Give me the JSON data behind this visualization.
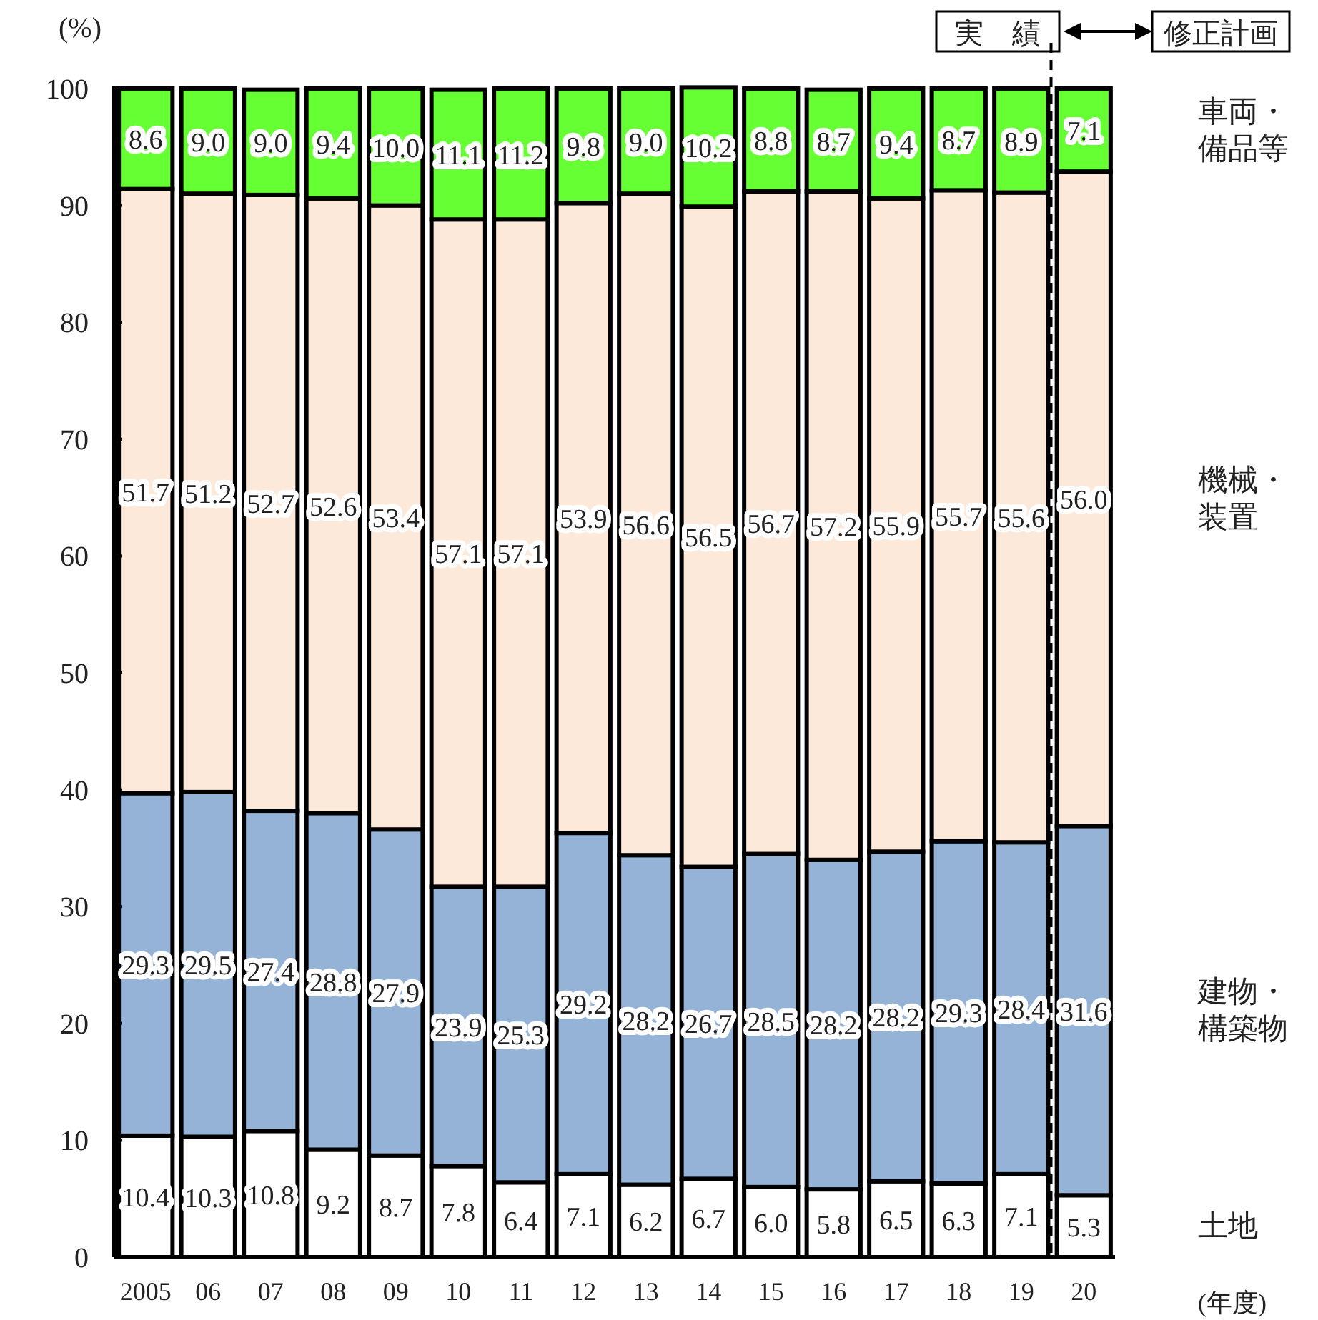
{
  "chart_data": {
    "type": "bar",
    "stacked": true,
    "grid": false,
    "ylabel": "(%)",
    "xlabel": "(年度)",
    "categories": [
      "2005",
      "06",
      "07",
      "08",
      "09",
      "10",
      "11",
      "12",
      "13",
      "14",
      "15",
      "16",
      "17",
      "18",
      "19",
      "20"
    ],
    "ylim": [
      0,
      100
    ],
    "yticks": [
      0,
      10,
      20,
      30,
      40,
      50,
      60,
      70,
      80,
      90,
      100
    ],
    "series": [
      {
        "name": "土地",
        "color": "#ffffff",
        "values": [
          10.4,
          10.3,
          10.8,
          9.2,
          8.7,
          7.8,
          6.4,
          7.1,
          6.2,
          6.7,
          6.0,
          5.8,
          6.5,
          6.3,
          7.1,
          5.3
        ],
        "value_labels": [
          "10.4",
          "10.3",
          "10.8",
          "9.2",
          "8.7",
          "7.8",
          "6.4",
          "7.1",
          "6.2",
          "6.7",
          "6.0",
          "5.8",
          "6.5",
          "6.3",
          "7.1",
          "5.3"
        ]
      },
      {
        "name": "建物・構築物",
        "color": "#95b3d7",
        "values": [
          29.3,
          29.5,
          27.4,
          28.8,
          27.9,
          23.9,
          25.3,
          29.2,
          28.2,
          26.7,
          28.5,
          28.2,
          28.2,
          29.3,
          28.4,
          31.6
        ],
        "value_labels": [
          "29.3",
          "29.5",
          "27.4",
          "28.8",
          "27.9",
          "23.9",
          "25.3",
          "29.2",
          "28.2",
          "26.7",
          "28.5",
          "28.2",
          "28.2",
          "29.3",
          "28.4",
          "31.6"
        ]
      },
      {
        "name": "機械・装置",
        "color": "#fde9d9",
        "values": [
          51.7,
          51.2,
          52.7,
          52.6,
          53.4,
          57.1,
          57.1,
          53.9,
          56.6,
          56.5,
          56.7,
          57.2,
          55.9,
          55.7,
          55.6,
          56.0
        ],
        "value_labels": [
          "51.7",
          "51.2",
          "52.7",
          "52.6",
          "53.4",
          "57.1",
          "57.1",
          "53.9",
          "56.6",
          "56.5",
          "56.7",
          "57.2",
          "55.9",
          "55.7",
          "55.6",
          "56.0"
        ]
      },
      {
        "name": "車両・備品等",
        "color": "#66ff33",
        "values": [
          8.6,
          9.0,
          9.0,
          9.4,
          10.0,
          11.1,
          11.2,
          9.8,
          9.0,
          10.2,
          8.8,
          8.7,
          9.4,
          8.7,
          8.9,
          7.1
        ],
        "value_labels": [
          "8.6",
          "9.0",
          "9.0",
          "9.4",
          "10.0",
          "11.1",
          "11.2",
          "9.8",
          "9.0",
          "10.2",
          "8.8",
          "8.7",
          "9.4",
          "8.7",
          "8.9",
          "7.1"
        ]
      }
    ],
    "annotations": [
      "実　績",
      "修正計画"
    ]
  }
}
